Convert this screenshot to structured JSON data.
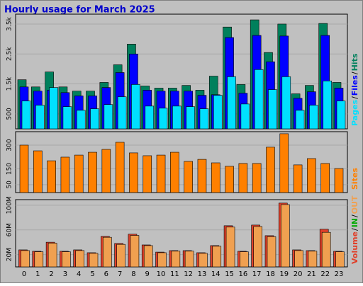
{
  "chart_data": [
    {
      "type": "bar",
      "title": "Hourly usage for March 2025",
      "categories": [
        "0",
        "1",
        "2",
        "3",
        "4",
        "5",
        "6",
        "7",
        "8",
        "9",
        "10",
        "11",
        "12",
        "13",
        "14",
        "15",
        "16",
        "17",
        "18",
        "19",
        "20",
        "21",
        "22",
        "23"
      ],
      "ylim": [
        0,
        3830
      ],
      "yticks": [
        {
          "value": 500,
          "label": "500"
        },
        {
          "value": 1500,
          "label": "1.5k"
        },
        {
          "value": 2500,
          "label": "2.5k"
        },
        {
          "value": 3500,
          "label": "3.5k"
        }
      ],
      "grid": true,
      "series": [
        {
          "name": "Hits",
          "color": "#00805c",
          "values": [
            1640,
            1400,
            1900,
            1400,
            1260,
            1260,
            1550,
            2140,
            2830,
            1430,
            1360,
            1360,
            1450,
            1290,
            1760,
            3400,
            1480,
            3640,
            2550,
            3500,
            1170,
            1450,
            3520,
            1550
          ]
        },
        {
          "name": "Files",
          "color": "#0000ff",
          "values": [
            1400,
            1260,
            1290,
            1210,
            1100,
            1100,
            1380,
            1880,
            2500,
            1290,
            1260,
            1260,
            1260,
            1120,
            1140,
            3050,
            1190,
            3120,
            2240,
            3100,
            1020,
            1240,
            3120,
            1360
          ]
        },
        {
          "name": "Pages",
          "color": "#00e0ff",
          "values": [
            930,
            790,
            1380,
            740,
            620,
            670,
            810,
            1070,
            1480,
            760,
            690,
            760,
            740,
            670,
            1120,
            1740,
            830,
            1980,
            1310,
            1740,
            620,
            790,
            1600,
            930
          ]
        }
      ]
    },
    {
      "type": "bar",
      "ylim": [
        0,
        385
      ],
      "yticks": [
        50,
        150,
        300
      ],
      "grid": true,
      "series": [
        {
          "name": "Sites",
          "color": "#ff8000",
          "values": [
            300,
            264,
            201,
            224,
            237,
            255,
            273,
            318,
            251,
            233,
            237,
            255,
            197,
            210,
            188,
            166,
            184,
            184,
            287,
            372,
            175,
            215,
            184,
            152
          ]
        }
      ]
    },
    {
      "type": "bar",
      "ylim": [
        0,
        109
      ],
      "yticks": [
        {
          "value": 20,
          "label": "20M"
        },
        {
          "value": 60,
          "label": "60M"
        },
        {
          "value": 100,
          "label": "100M"
        }
      ],
      "grid": true,
      "series": [
        {
          "name": "Volume",
          "color": "#e0402a",
          "values": [
            27.6,
            25.3,
            40,
            25.3,
            27.6,
            23,
            49.4,
            38,
            53,
            35.6,
            24,
            26.4,
            26.4,
            23,
            34.5,
            66.7,
            25.3,
            67.8,
            50.6,
            103.4,
            27.6,
            26.4,
            61,
            25.3
          ]
        },
        {
          "name": "OUT",
          "color": "#f0a050",
          "values": [
            26.5,
            24.5,
            38.5,
            24.5,
            26.5,
            22,
            48,
            36.5,
            51,
            34.5,
            23,
            25.5,
            25.5,
            22,
            33.5,
            64.5,
            24.5,
            65.5,
            49,
            101,
            26.5,
            25.5,
            56,
            24.5
          ]
        }
      ],
      "legend_extra": {
        "name": "IN",
        "color": "#00aa00"
      }
    }
  ]
}
